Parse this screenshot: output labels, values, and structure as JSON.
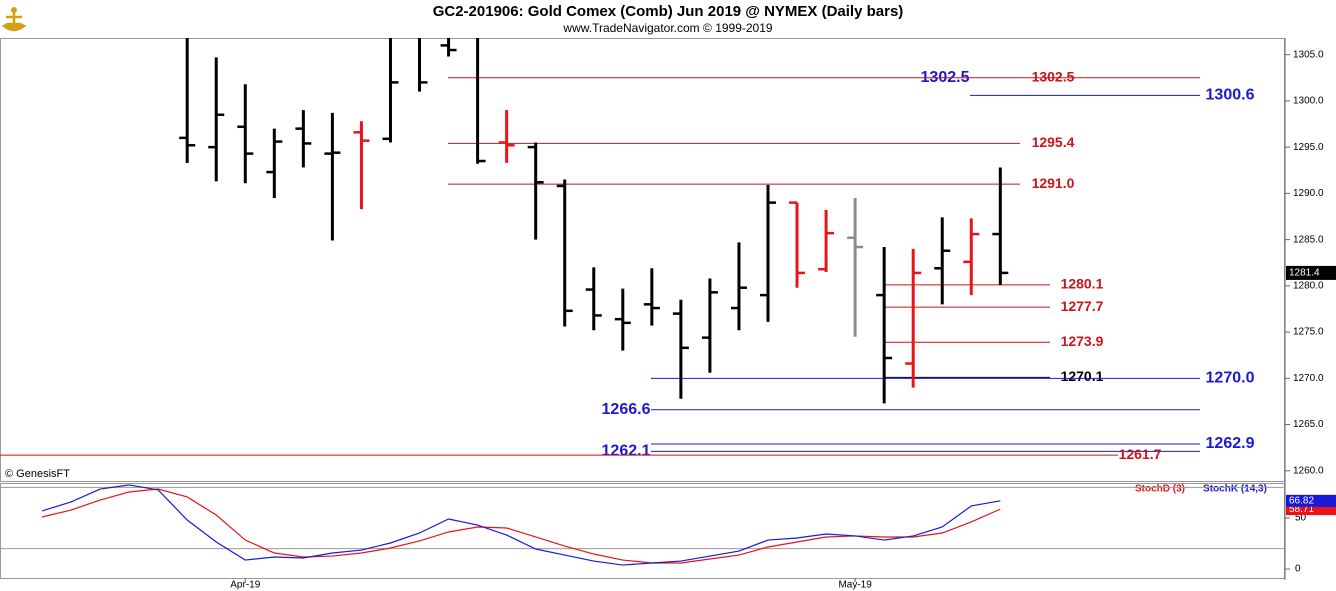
{
  "chart_data": [
    {
      "type": "ohlc",
      "title": "GC2-201906:  Gold Comex (Comb) Jun 2019 @ NYMEX  (Daily bars)",
      "subtitle": "www.TradeNavigator.com © 1999-2019",
      "source": "© GenesisFT",
      "open": [
        null,
        null,
        null,
        null,
        null,
        1296,
        1295.0,
        1297.2,
        1292.3,
        1297.0,
        1294.3,
        1296.6,
        1295.9,
        1307,
        1306,
        1307,
        1295.5,
        1295.0,
        1290.8,
        1279.6,
        1276.4,
        1278.0,
        1277.0,
        1274.4,
        1277.6,
        1279.0,
        1289.0,
        1281.8,
        1285.2,
        1279.0,
        1271.6,
        1281.9,
        1282.6,
        1285.6
      ],
      "high": [
        null,
        null,
        null,
        null,
        null,
        1307,
        1304.7,
        1301.8,
        1297.0,
        1299.0,
        1298.7,
        1297.8,
        1307,
        1309,
        1309,
        1309,
        1299.0,
        1295.5,
        1291.5,
        1282.0,
        1279.7,
        1281.9,
        1278.5,
        1280.8,
        1284.7,
        1290.9,
        1289.0,
        1288.2,
        1289.5,
        1284.2,
        1284.0,
        1287.4,
        1287.3,
        1292.8
      ],
      "low": [
        null,
        null,
        null,
        null,
        null,
        1293.3,
        1291.3,
        1291.1,
        1289.5,
        1292.8,
        1284.9,
        1288.3,
        1295.5,
        1301.0,
        1304.8,
        1293.2,
        1293.3,
        1285.0,
        1275.6,
        1275.2,
        1273.0,
        1275.7,
        1267.8,
        1270.6,
        1275.2,
        1276.1,
        1279.8,
        1281.5,
        1274.5,
        1267.3,
        1269.0,
        1278.0,
        1279.0,
        1280.1
      ],
      "close": [
        null,
        null,
        null,
        null,
        null,
        1295.2,
        1298.5,
        1294.3,
        1295.6,
        1295.4,
        1294.4,
        1295.7,
        1302.0,
        1302.0,
        1305.5,
        1293.5,
        1295.2,
        1291.2,
        1277.3,
        1276.8,
        1276.0,
        1277.6,
        1273.3,
        1279.3,
        1279.8,
        1289.0,
        1281.4,
        1285.7,
        1284.2,
        1272.2,
        1281.4,
        1283.8,
        1285.6,
        1281.4
      ],
      "colors": [
        null,
        null,
        null,
        null,
        null,
        "#000000",
        "#000000",
        "#000000",
        "#000000",
        "#000000",
        "#000000",
        "#e8141a",
        "#000000",
        "#000000",
        "#000000",
        "#000000",
        "#e8141a",
        "#000000",
        "#000000",
        "#000000",
        "#000000",
        "#000000",
        "#000000",
        "#000000",
        "#000000",
        "#000000",
        "#e8141a",
        "#e8141a",
        "#8c8c8c",
        "#000000",
        "#e8141a",
        "#000000",
        "#e8141a",
        "#000000"
      ],
      "ylim": [
        1258.9,
        1306.8
      ],
      "yticks": [
        {
          "value": 1260,
          "label": "1260.0"
        },
        {
          "value": 1265,
          "label": "1265.0"
        },
        {
          "value": 1270,
          "label": "1270.0"
        },
        {
          "value": 1275,
          "label": "1275.0"
        },
        {
          "value": 1280,
          "label": "1280.0"
        },
        {
          "value": 1285,
          "label": "1285.0"
        },
        {
          "value": 1290,
          "label": "1290.0"
        },
        {
          "value": 1295,
          "label": "1295.0"
        },
        {
          "value": 1300,
          "label": "1300.0"
        },
        {
          "value": 1305,
          "label": "1305.0"
        }
      ],
      "levels": {
        "values": [
          1302.5,
          1302.5,
          1300.6,
          1295.4,
          1291.0,
          1280.1,
          1277.7,
          1273.9,
          1270.1,
          1270.0,
          1266.6,
          1262.9,
          1262.1,
          1261.7
        ],
        "value_labels": [
          "1302.5",
          "1302.5",
          "1300.6",
          "1295.4",
          "1291.0",
          "1280.1",
          "1277.7",
          "1273.9",
          "1270.1",
          "1270.0",
          "1266.6",
          "1262.9",
          "1262.1",
          "1261.7"
        ],
        "colors": [
          "#1a1ad6",
          "#c8141a",
          "#1a1ad6",
          "#c8141a",
          "#c8141a",
          "#c8141a",
          "#c8141a",
          "#c8141a",
          "#000000",
          "#1a1ad6",
          "#1a1ad6",
          "#1a1ad6",
          "#1a1ad6",
          "#c8141a"
        ]
      }
    },
    {
      "type": "line",
      "categories": [
        null,
        null,
        null,
        null,
        null,
        null,
        null,
        "Apr-19",
        null,
        null,
        null,
        null,
        null,
        null,
        null,
        null,
        null,
        null,
        null,
        null,
        null,
        null,
        null,
        null,
        null,
        null,
        null,
        null,
        "May-19",
        null,
        null,
        null,
        null,
        null
      ],
      "series": [
        {
          "name": "StochD (3)",
          "color": "#e8141a",
          "values": [
            51.0,
            57.8,
            67.6,
            75.5,
            78.4,
            70.6,
            52.9,
            28.4,
            15.7,
            11.8,
            12.7,
            15.7,
            20.6,
            27.5,
            36.3,
            41.2,
            40.2,
            31.4,
            22.5,
            14.7,
            8.8,
            5.9,
            5.9,
            9.8,
            13.7,
            21.6,
            26.5,
            31.4,
            32.4,
            31.4,
            31.4,
            35.3,
            46.1,
            58.71
          ]
        },
        {
          "name": "StochK (14,3)",
          "color": "#1a1ad6",
          "values": [
            56.9,
            65.7,
            78.4,
            82.4,
            77.5,
            48.0,
            26.5,
            8.8,
            11.8,
            10.8,
            15.7,
            18.6,
            25.5,
            35.3,
            49.0,
            43.1,
            33.3,
            19.6,
            13.7,
            7.8,
            3.9,
            5.9,
            7.8,
            12.7,
            17.6,
            28.4,
            30.4,
            34.3,
            32.4,
            28.4,
            32.4,
            41.2,
            61.8,
            66.82
          ]
        }
      ],
      "ylim": [
        -8.8,
        84.3
      ],
      "yticks": [
        0,
        50
      ],
      "hlines": [
        20,
        80
      ]
    }
  ]
}
